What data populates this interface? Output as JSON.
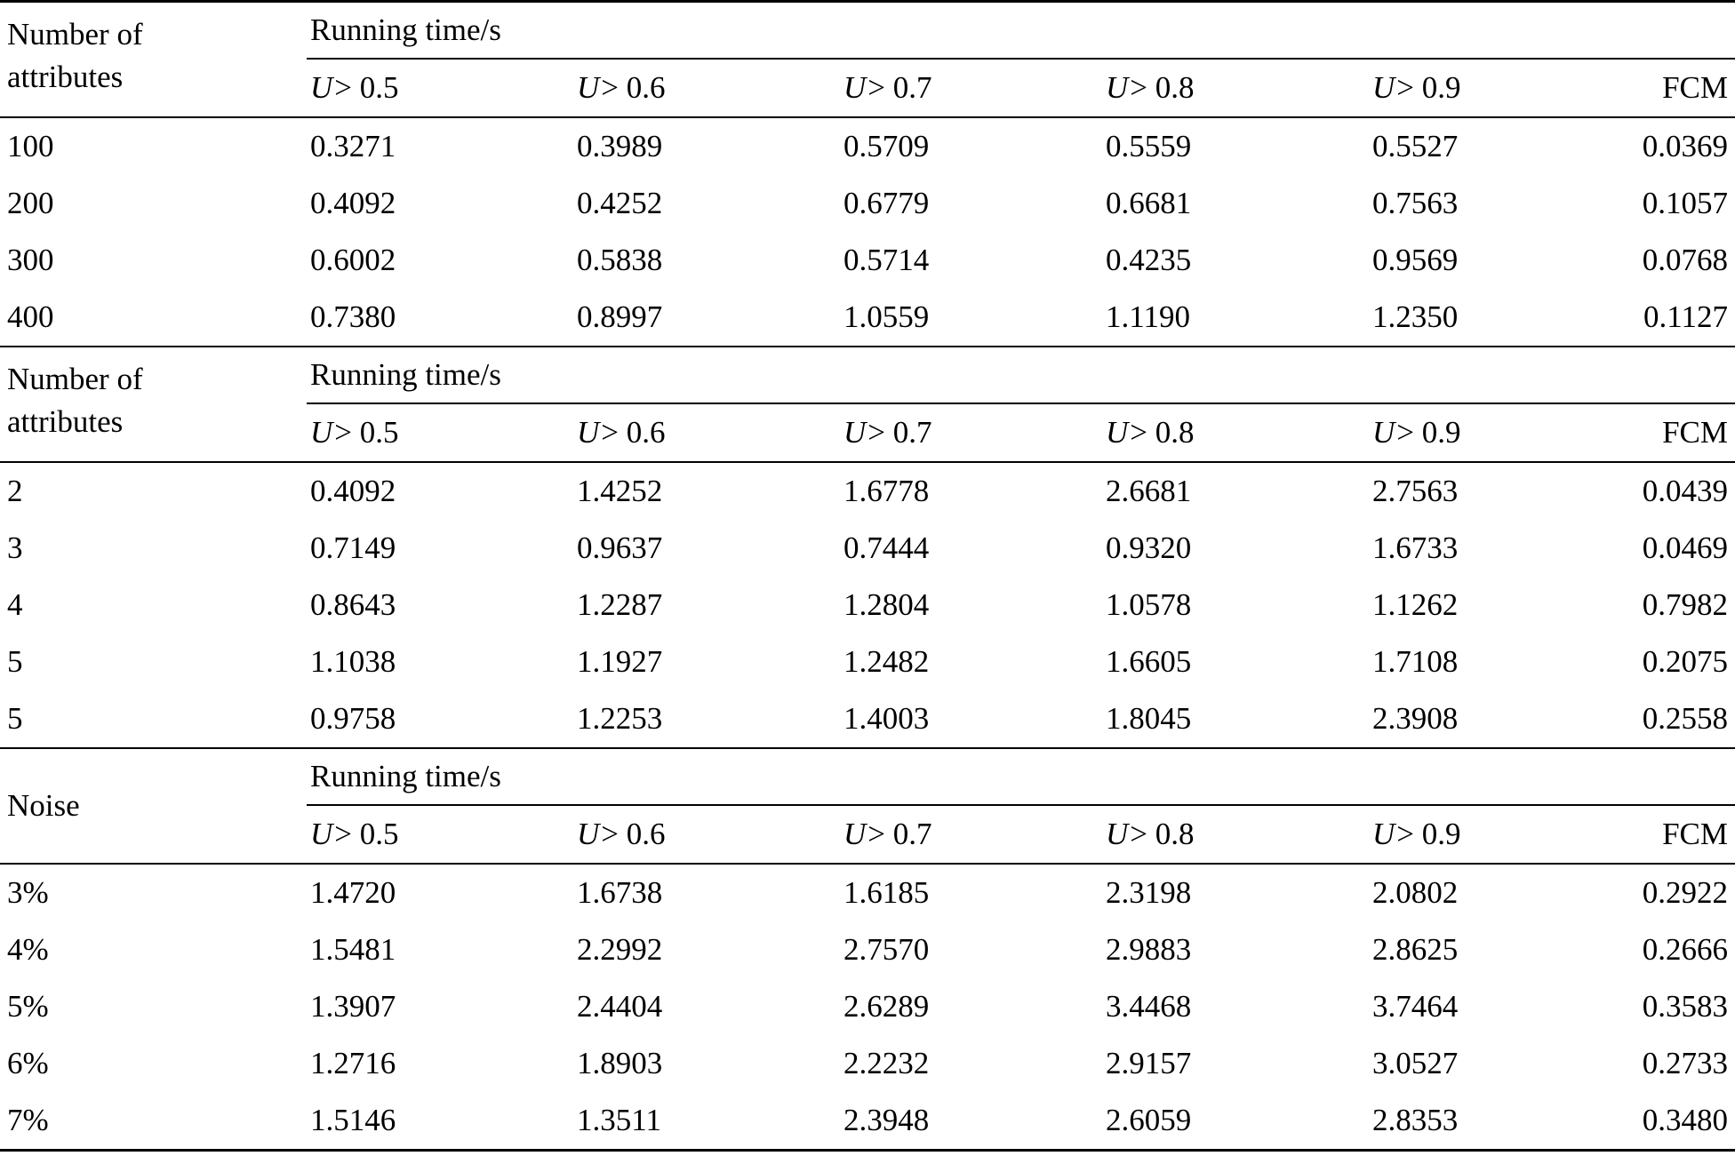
{
  "page": {
    "background": "#ffffff",
    "text_color": "#000000",
    "rule_color": "#000000"
  },
  "tables": [
    {
      "row_header_lines": [
        "Number of",
        "attributes"
      ],
      "row_header_align": "top",
      "span_header": "Running time/s",
      "columns": [
        "U > 0.5",
        "U > 0.6",
        "U > 0.7",
        "U > 0.8",
        "U > 0.9",
        "FCM"
      ],
      "rows": [
        {
          "label": "100",
          "values": [
            "0.3271",
            "0.3989",
            "0.5709",
            "0.5559",
            "0.5527",
            "0.0369"
          ]
        },
        {
          "label": "200",
          "values": [
            "0.4092",
            "0.4252",
            "0.6779",
            "0.6681",
            "0.7563",
            "0.1057"
          ]
        },
        {
          "label": "300",
          "values": [
            "0.6002",
            "0.5838",
            "0.5714",
            "0.4235",
            "0.9569",
            "0.0768"
          ]
        },
        {
          "label": "400",
          "values": [
            "0.7380",
            "0.8997",
            "1.0559",
            "1.1190",
            "1.2350",
            "0.1127"
          ]
        }
      ]
    },
    {
      "row_header_lines": [
        "Number of",
        "attributes"
      ],
      "row_header_align": "top",
      "span_header": "Running time/s",
      "columns": [
        "U > 0.5",
        "U > 0.6",
        "U > 0.7",
        "U > 0.8",
        "U > 0.9",
        "FCM"
      ],
      "rows": [
        {
          "label": "2",
          "values": [
            "0.4092",
            "1.4252",
            "1.6778",
            "2.6681",
            "2.7563",
            "0.0439"
          ]
        },
        {
          "label": "3",
          "values": [
            "0.7149",
            "0.9637",
            "0.7444",
            "0.9320",
            "1.6733",
            "0.0469"
          ]
        },
        {
          "label": "4",
          "values": [
            "0.8643",
            "1.2287",
            "1.2804",
            "1.0578",
            "1.1262",
            "0.7982"
          ]
        },
        {
          "label": "5",
          "values": [
            "1.1038",
            "1.1927",
            "1.2482",
            "1.6605",
            "1.7108",
            "0.2075"
          ]
        },
        {
          "label": "5",
          "values": [
            "0.9758",
            "1.2253",
            "1.4003",
            "1.8045",
            "2.3908",
            "0.2558"
          ]
        }
      ]
    },
    {
      "row_header_lines": [
        "Noise"
      ],
      "row_header_align": "center",
      "span_header": "Running time/s",
      "columns": [
        "U > 0.5",
        "U > 0.6",
        "U > 0.7",
        "U > 0.8",
        "U > 0.9",
        "FCM"
      ],
      "rows": [
        {
          "label": "3%",
          "values": [
            "1.4720",
            "1.6738",
            "1.6185",
            "2.3198",
            "2.0802",
            "0.2922"
          ]
        },
        {
          "label": "4%",
          "values": [
            "1.5481",
            "2.2992",
            "2.7570",
            "2.9883",
            "2.8625",
            "0.2666"
          ]
        },
        {
          "label": "5%",
          "values": [
            "1.3907",
            "2.4404",
            "2.6289",
            "3.4468",
            "3.7464",
            "0.3583"
          ]
        },
        {
          "label": "6%",
          "values": [
            "1.2716",
            "1.8903",
            "2.2232",
            "2.9157",
            "3.0527",
            "0.2733"
          ]
        },
        {
          "label": "7%",
          "values": [
            "1.5146",
            "1.3511",
            "2.3948",
            "2.6059",
            "2.8353",
            "0.3480"
          ]
        }
      ]
    }
  ]
}
